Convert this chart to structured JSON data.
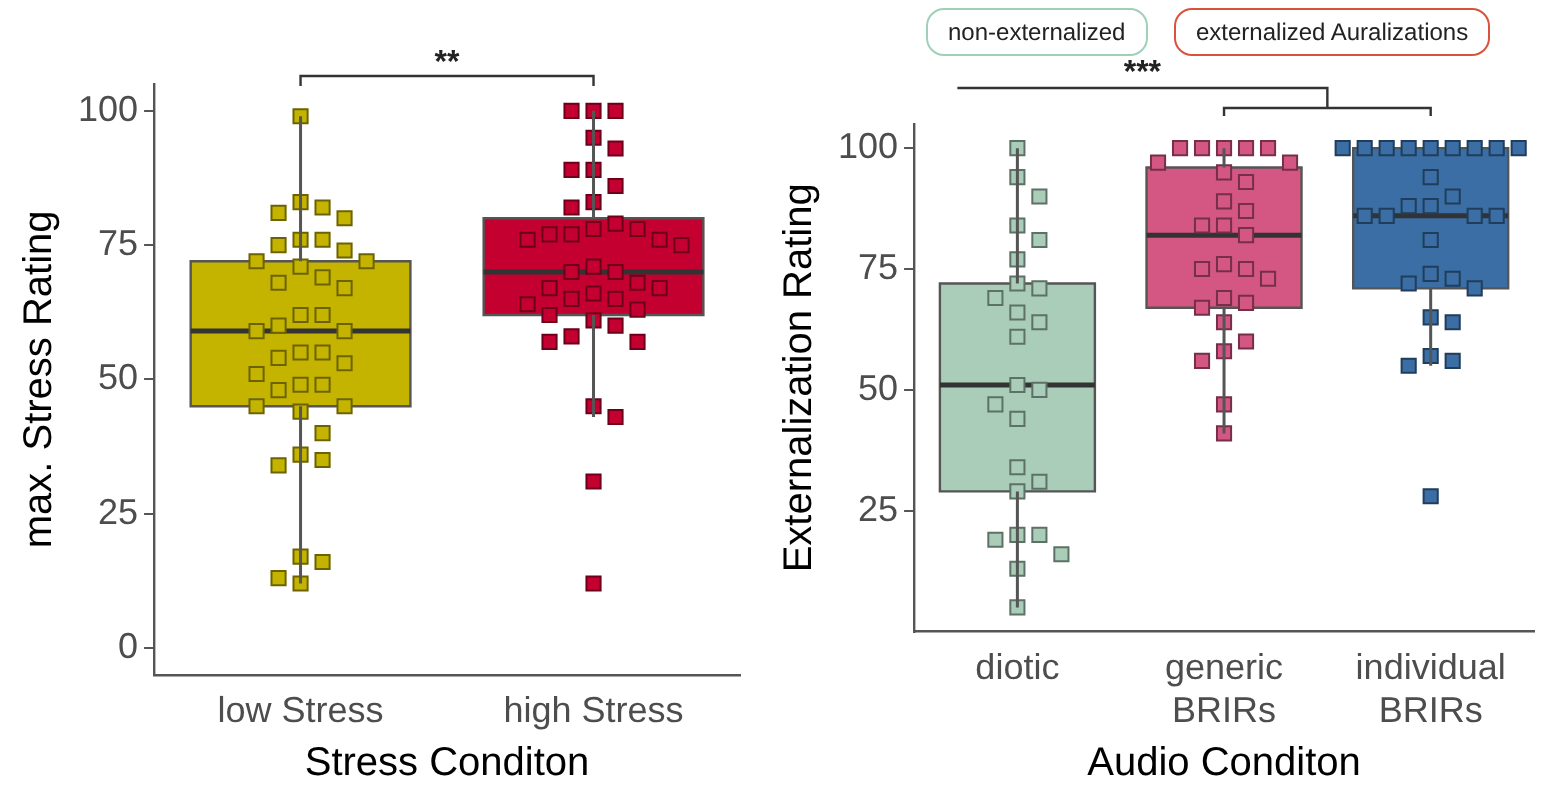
{
  "chart_data": [
    {
      "type": "box",
      "xlabel": "Stress Conditon",
      "ylabel": "max. Stress Rating",
      "categories": [
        "low Stress",
        "high Stress"
      ],
      "ylim": [
        -5,
        105
      ],
      "yticks": [
        0,
        25,
        50,
        75,
        100
      ],
      "grid": false,
      "legend": false,
      "marker": "square",
      "annotations": [
        "**"
      ],
      "series": [
        {
          "type": "box",
          "colors": [
            "#c4b400",
            "#c40030"
          ],
          "boxes": [
            {
              "low": 12,
              "q1": 45,
              "median": 59,
              "q3": 72,
              "high": 99
            },
            {
              "low": 43,
              "q1": 62,
              "median": 70,
              "q3": 80,
              "high": 100
            }
          ]
        },
        {
          "type": "scatter",
          "color": "#c4b400",
          "x": [
            "low Stress",
            "low Stress",
            "low Stress",
            "low Stress",
            "low Stress",
            "low Stress",
            "low Stress",
            "low Stress",
            "low Stress",
            "low Stress",
            "low Stress",
            "low Stress",
            "low Stress",
            "low Stress",
            "low Stress",
            "low Stress",
            "low Stress",
            "low Stress",
            "low Stress",
            "low Stress",
            "low Stress",
            "low Stress",
            "low Stress",
            "low Stress",
            "low Stress",
            "low Stress",
            "low Stress",
            "low Stress",
            "low Stress",
            "low Stress",
            "low Stress",
            "low Stress",
            "low Stress",
            "low Stress",
            "low Stress",
            "low Stress",
            "low Stress",
            "low Stress",
            "low Stress"
          ],
          "values": [
            99,
            83,
            82,
            81,
            80,
            76,
            76,
            75,
            74,
            72,
            72,
            71,
            69,
            68,
            67,
            62,
            62,
            60,
            59,
            59,
            55,
            55,
            54,
            53,
            51,
            49,
            49,
            48,
            45,
            45,
            44,
            40,
            36,
            35,
            34,
            17,
            16,
            13,
            12
          ]
        },
        {
          "type": "scatter",
          "color": "#c40030",
          "x": [
            "high Stress",
            "high Stress",
            "high Stress",
            "high Stress",
            "high Stress",
            "high Stress",
            "high Stress",
            "high Stress",
            "high Stress",
            "high Stress",
            "high Stress",
            "high Stress",
            "high Stress",
            "high Stress",
            "high Stress",
            "high Stress",
            "high Stress",
            "high Stress",
            "high Stress",
            "high Stress",
            "high Stress",
            "high Stress",
            "high Stress",
            "high Stress",
            "high Stress",
            "high Stress",
            "high Stress",
            "high Stress",
            "high Stress",
            "high Stress",
            "high Stress",
            "high Stress",
            "high Stress",
            "high Stress",
            "high Stress",
            "high Stress",
            "high Stress",
            "high Stress",
            "high Stress"
          ],
          "values": [
            100,
            100,
            100,
            95,
            93,
            89,
            89,
            86,
            83,
            82,
            79,
            78,
            78,
            77,
            77,
            76,
            76,
            75,
            71,
            70,
            70,
            68,
            67,
            67,
            66,
            65,
            65,
            64,
            63,
            62,
            61,
            60,
            58,
            57,
            57,
            45,
            43,
            31,
            12
          ]
        }
      ]
    },
    {
      "type": "box",
      "xlabel": "Audio Conditon",
      "ylabel": "Externalization Rating",
      "categories": [
        "diotic",
        "generic BRIRs",
        "individual BRIRs"
      ],
      "ylim": [
        0,
        105
      ],
      "yticks": [
        25,
        50,
        75,
        100
      ],
      "grid": false,
      "legend": false,
      "marker": "square",
      "annotations": [
        "non-externalized",
        "externalized Auralizations",
        "***"
      ],
      "series": [
        {
          "type": "box",
          "colors": [
            "#a9cdb9",
            "#d45683",
            "#3a6ea5"
          ],
          "boxes": [
            {
              "low": 5,
              "q1": 29,
              "median": 51,
              "q3": 72,
              "high": 100
            },
            {
              "low": 41,
              "q1": 67,
              "median": 82,
              "q3": 96,
              "high": 100
            },
            {
              "low": 55,
              "q1": 71,
              "median": 86,
              "q3": 100,
              "high": 100
            }
          ]
        },
        {
          "type": "scatter",
          "color": "#a9cdb9",
          "x": [
            "diotic",
            "diotic",
            "diotic",
            "diotic",
            "diotic",
            "diotic",
            "diotic",
            "diotic",
            "diotic",
            "diotic",
            "diotic",
            "diotic",
            "diotic",
            "diotic",
            "diotic",
            "diotic",
            "diotic",
            "diotic",
            "diotic",
            "diotic",
            "diotic",
            "diotic",
            "diotic",
            "diotic",
            "diotic"
          ],
          "values": [
            100,
            94,
            90,
            84,
            81,
            77,
            72,
            71,
            69,
            66,
            64,
            61,
            51,
            50,
            47,
            44,
            34,
            31,
            29,
            20,
            20,
            19,
            16,
            13,
            5
          ]
        },
        {
          "type": "scatter",
          "color": "#d45683",
          "x": [
            "generic BRIRs",
            "generic BRIRs",
            "generic BRIRs",
            "generic BRIRs",
            "generic BRIRs",
            "generic BRIRs",
            "generic BRIRs",
            "generic BRIRs",
            "generic BRIRs",
            "generic BRIRs",
            "generic BRIRs",
            "generic BRIRs",
            "generic BRIRs",
            "generic BRIRs",
            "generic BRIRs",
            "generic BRIRs",
            "generic BRIRs",
            "generic BRIRs",
            "generic BRIRs",
            "generic BRIRs",
            "generic BRIRs",
            "generic BRIRs",
            "generic BRIRs",
            "generic BRIRs",
            "generic BRIRs",
            "generic BRIRs",
            "generic BRIRs"
          ],
          "values": [
            100,
            100,
            100,
            100,
            100,
            97,
            97,
            95,
            93,
            89,
            87,
            84,
            84,
            82,
            76,
            75,
            75,
            73,
            69,
            68,
            67,
            64,
            60,
            58,
            56,
            47,
            41
          ]
        },
        {
          "type": "scatter",
          "color": "#3a6ea5",
          "x": [
            "individual BRIRs",
            "individual BRIRs",
            "individual BRIRs",
            "individual BRIRs",
            "individual BRIRs",
            "individual BRIRs",
            "individual BRIRs",
            "individual BRIRs",
            "individual BRIRs",
            "individual BRIRs",
            "individual BRIRs",
            "individual BRIRs",
            "individual BRIRs",
            "individual BRIRs",
            "individual BRIRs",
            "individual BRIRs",
            "individual BRIRs",
            "individual BRIRs",
            "individual BRIRs",
            "individual BRIRs",
            "individual BRIRs",
            "individual BRIRs",
            "individual BRIRs",
            "individual BRIRs",
            "individual BRIRs",
            "individual BRIRs",
            "individual BRIRs",
            "individual BRIRs"
          ],
          "values": [
            100,
            100,
            100,
            100,
            100,
            100,
            100,
            100,
            100,
            94,
            90,
            88,
            88,
            86,
            86,
            86,
            86,
            81,
            74,
            73,
            72,
            71,
            65,
            64,
            57,
            56,
            55,
            28
          ]
        }
      ]
    }
  ]
}
